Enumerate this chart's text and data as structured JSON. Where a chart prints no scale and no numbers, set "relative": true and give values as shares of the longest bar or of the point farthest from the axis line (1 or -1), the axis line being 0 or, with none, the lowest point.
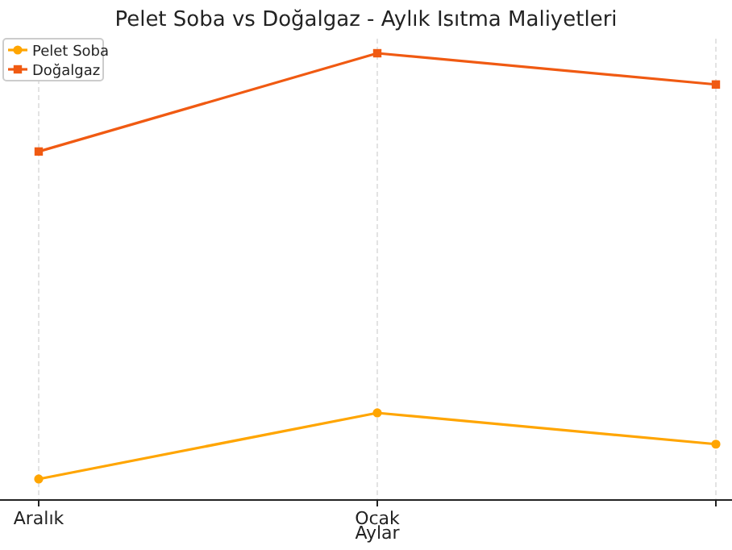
{
  "chart_data": {
    "type": "line",
    "title": "Pelet Soba vs Doğalgaz - Aylık Isıtma Maliyetleri",
    "xlabel": "Aylar",
    "categories": [
      "Aralık",
      "Ocak",
      null
    ],
    "relative": true,
    "grid": "x",
    "legend": "top left",
    "series": [
      {
        "name": "Pelet Soba",
        "color": "#ffa500",
        "marker": "circle",
        "values": [
          0.047,
          0.195,
          0.125
        ]
      },
      {
        "name": "Doğalgaz",
        "color": "#f05a12",
        "marker": "square",
        "values": [
          0.78,
          1,
          0.93
        ]
      }
    ]
  }
}
